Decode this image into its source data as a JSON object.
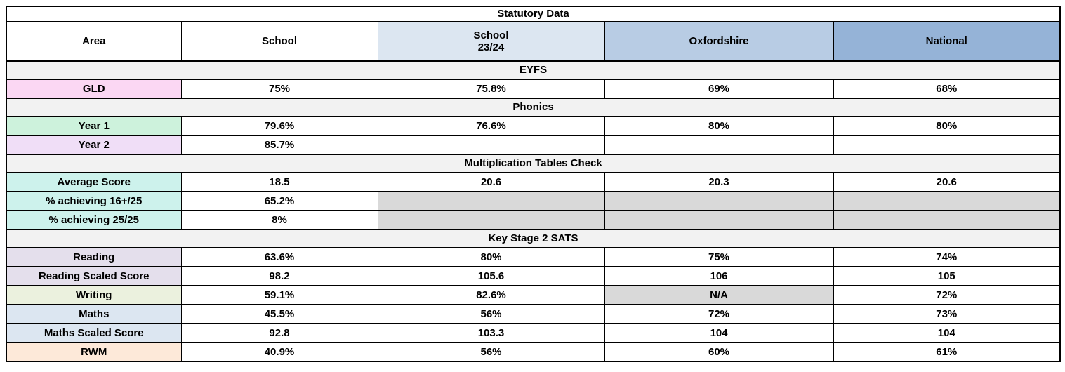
{
  "table": {
    "title": "Statutory Data",
    "columns": [
      {
        "label": "Area",
        "bg": "#ffffff"
      },
      {
        "label": "School",
        "bg": "#ffffff"
      },
      {
        "label": "School\n23/24",
        "bg": "#dce6f1"
      },
      {
        "label": "Oxfordshire",
        "bg": "#b8cce4"
      },
      {
        "label": "National",
        "bg": "#95b3d7"
      }
    ],
    "sections": [
      {
        "name": "EYFS",
        "rows": [
          {
            "label": "GLD",
            "label_bg": "#fbd7f3",
            "cells": [
              {
                "t": "75%"
              },
              {
                "t": "75.8%"
              },
              {
                "t": "69%"
              },
              {
                "t": "68%"
              }
            ]
          }
        ]
      },
      {
        "name": "Phonics",
        "rows": [
          {
            "label": "Year 1",
            "label_bg": "#cdf2dc",
            "cells": [
              {
                "t": "79.6%"
              },
              {
                "t": "76.6%"
              },
              {
                "t": "80%"
              },
              {
                "t": "80%"
              }
            ]
          },
          {
            "label": "Year 2",
            "label_bg": "#f0def7",
            "cells": [
              {
                "t": "85.7%"
              },
              {
                "t": ""
              },
              {
                "t": ""
              },
              {
                "t": ""
              }
            ]
          }
        ]
      },
      {
        "name": "Multiplication Tables Check",
        "rows": [
          {
            "label": "Average Score",
            "label_bg": "#cdf2ec",
            "cells": [
              {
                "t": "18.5"
              },
              {
                "t": "20.6"
              },
              {
                "t": "20.3"
              },
              {
                "t": "20.6"
              }
            ]
          },
          {
            "label": "% achieving 16+/25",
            "label_bg": "#cdf2ec",
            "cells": [
              {
                "t": "65.2%"
              },
              {
                "t": "",
                "bg": "#d9d9d9"
              },
              {
                "t": "",
                "bg": "#d9d9d9"
              },
              {
                "t": "",
                "bg": "#d9d9d9"
              }
            ]
          },
          {
            "label": "% achieving 25/25",
            "label_bg": "#cdf2ec",
            "cells": [
              {
                "t": "8%"
              },
              {
                "t": "",
                "bg": "#d9d9d9"
              },
              {
                "t": "",
                "bg": "#d9d9d9"
              },
              {
                "t": "",
                "bg": "#d9d9d9"
              }
            ]
          }
        ]
      },
      {
        "name": "Key Stage 2 SATS",
        "rows": [
          {
            "label": "Reading",
            "label_bg": "#e4dfec",
            "cells": [
              {
                "t": "63.6%"
              },
              {
                "t": "80%"
              },
              {
                "t": "75%"
              },
              {
                "t": "74%"
              }
            ]
          },
          {
            "label": "Reading Scaled Score",
            "label_bg": "#e4dfec",
            "cells": [
              {
                "t": "98.2"
              },
              {
                "t": "105.6"
              },
              {
                "t": "106"
              },
              {
                "t": "105"
              }
            ]
          },
          {
            "label": "Writing",
            "label_bg": "#ebf1de",
            "cells": [
              {
                "t": "59.1%"
              },
              {
                "t": "82.6%"
              },
              {
                "t": "N/A",
                "bg": "#d9d9d9"
              },
              {
                "t": "72%"
              }
            ]
          },
          {
            "label": "Maths",
            "label_bg": "#dce6f1",
            "cells": [
              {
                "t": "45.5%"
              },
              {
                "t": "56%"
              },
              {
                "t": "72%"
              },
              {
                "t": "73%"
              }
            ]
          },
          {
            "label": "Maths Scaled Score",
            "label_bg": "#dce6f1",
            "cells": [
              {
                "t": "92.8"
              },
              {
                "t": "103.3"
              },
              {
                "t": "104"
              },
              {
                "t": "104"
              }
            ]
          },
          {
            "label": "RWM",
            "label_bg": "#fde9d9",
            "cells": [
              {
                "t": "40.9%"
              },
              {
                "t": "56%"
              },
              {
                "t": "60%"
              },
              {
                "t": "61%"
              }
            ]
          }
        ]
      }
    ],
    "colors": {
      "border": "#000000",
      "section_header_bg": "#f2f2f2",
      "unavailable_cell_bg": "#d9d9d9",
      "header_school_2324_bg": "#dce6f1",
      "header_oxfordshire_bg": "#b8cce4",
      "header_national_bg": "#95b3d7"
    }
  }
}
